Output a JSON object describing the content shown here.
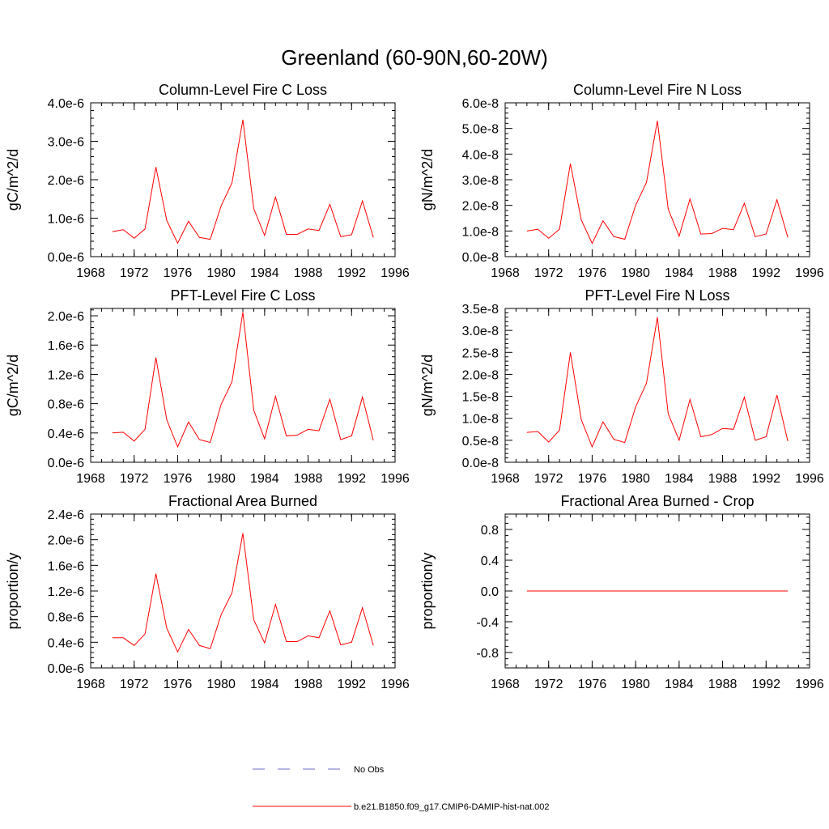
{
  "figure": {
    "title": "Greenland (60-90N,60-20W)"
  },
  "legend": {
    "entries": [
      {
        "label": "No Obs",
        "color": "#6b6bc8",
        "style": "dashed"
      },
      {
        "label": "b.e21.B1850.f09_g17.CMIP6-DAMIP-hist-nat.002",
        "color": "#ff0000",
        "style": "solid"
      }
    ]
  },
  "colors": {
    "series": "#ff0000",
    "axis": "#000000"
  },
  "chart_data": [
    {
      "type": "line",
      "title": "Column-Level Fire C Loss",
      "ylabel": "gC/m^2/d",
      "xlim": [
        1968,
        1996
      ],
      "ylim": [
        0,
        4e-06
      ],
      "xticks": [
        1968,
        1972,
        1976,
        1980,
        1984,
        1988,
        1992,
        1996
      ],
      "xtick_labels": [
        "1968",
        "1972",
        "1976",
        "1980",
        "1984",
        "1988",
        "1992",
        "1996"
      ],
      "yticks": [
        0,
        1e-06,
        2e-06,
        3e-06,
        4e-06
      ],
      "ytick_labels": [
        "0.0e-6",
        "1.0e-6",
        "2.0e-6",
        "3.0e-6",
        "4.0e-6"
      ],
      "grid": false,
      "x": [
        1970,
        1971,
        1972,
        1973,
        1974,
        1975,
        1976,
        1977,
        1978,
        1979,
        1980,
        1981,
        1982,
        1983,
        1984,
        1985,
        1986,
        1987,
        1988,
        1989,
        1990,
        1991,
        1992,
        1993,
        1994
      ],
      "series": [
        {
          "values": [
            6.5e-07,
            7e-07,
            4.8e-07,
            7.2e-07,
            2.33e-06,
            9.4e-07,
            3.5e-07,
            9.2e-07,
            5e-07,
            4.5e-07,
            1.32e-06,
            1.92e-06,
            3.56e-06,
            1.25e-06,
            5.5e-07,
            1.55e-06,
            5.8e-07,
            5.8e-07,
            7.2e-07,
            6.8e-07,
            1.36e-06,
            5.2e-07,
            5.7e-07,
            1.45e-06,
            5e-07
          ]
        }
      ]
    },
    {
      "type": "line",
      "title": "Column-Level Fire N Loss",
      "ylabel": "gN/m^2/d",
      "xlim": [
        1968,
        1996
      ],
      "ylim": [
        0,
        6e-08
      ],
      "xticks": [
        1968,
        1972,
        1976,
        1980,
        1984,
        1988,
        1992,
        1996
      ],
      "xtick_labels": [
        "1968",
        "1972",
        "1976",
        "1980",
        "1984",
        "1988",
        "1992",
        "1996"
      ],
      "yticks": [
        0,
        1e-08,
        2e-08,
        3e-08,
        4e-08,
        5e-08,
        6e-08
      ],
      "ytick_labels": [
        "0.0e-8",
        "1.0e-8",
        "2.0e-8",
        "3.0e-8",
        "4.0e-8",
        "5.0e-8",
        "6.0e-8"
      ],
      "grid": false,
      "x": [
        1970,
        1971,
        1972,
        1973,
        1974,
        1975,
        1976,
        1977,
        1978,
        1979,
        1980,
        1981,
        1982,
        1983,
        1984,
        1985,
        1986,
        1987,
        1988,
        1989,
        1990,
        1991,
        1992,
        1993,
        1994
      ],
      "series": [
        {
          "values": [
            1e-08,
            1.07e-08,
            7.2e-09,
            1.07e-08,
            3.63e-08,
            1.43e-08,
            5.2e-09,
            1.4e-08,
            7.8e-09,
            6.8e-09,
            2e-08,
            2.9e-08,
            5.3e-08,
            1.85e-08,
            8e-09,
            2.25e-08,
            8.8e-09,
            9e-09,
            1.1e-08,
            1.05e-08,
            2.08e-08,
            7.8e-09,
            8.8e-09,
            2.22e-08,
            7.5e-09
          ]
        }
      ]
    },
    {
      "type": "line",
      "title": "PFT-Level Fire C Loss",
      "ylabel": "gC/m^2/d",
      "xlim": [
        1968,
        1996
      ],
      "ylim": [
        0,
        2.1e-06
      ],
      "xticks": [
        1968,
        1972,
        1976,
        1980,
        1984,
        1988,
        1992,
        1996
      ],
      "xtick_labels": [
        "1968",
        "1972",
        "1976",
        "1980",
        "1984",
        "1988",
        "1992",
        "1996"
      ],
      "yticks": [
        0,
        4e-07,
        8e-07,
        1.2e-06,
        1.6e-06,
        2e-06
      ],
      "ytick_labels": [
        "0.0e-6",
        "0.4e-6",
        "0.8e-6",
        "1.2e-6",
        "1.6e-6",
        "2.0e-6"
      ],
      "grid": false,
      "x": [
        1970,
        1971,
        1972,
        1973,
        1974,
        1975,
        1976,
        1977,
        1978,
        1979,
        1980,
        1981,
        1982,
        1983,
        1984,
        1985,
        1986,
        1987,
        1988,
        1989,
        1990,
        1991,
        1992,
        1993,
        1994
      ],
      "series": [
        {
          "values": [
            4e-07,
            4.1e-07,
            2.9e-07,
            4.5e-07,
            1.43e-06,
            5.8e-07,
            2.1e-07,
            5.5e-07,
            3.1e-07,
            2.7e-07,
            7.9e-07,
            1.1e-06,
            2.05e-06,
            7.1e-07,
            3.2e-07,
            9e-07,
            3.6e-07,
            3.7e-07,
            4.5e-07,
            4.3e-07,
            8.6e-07,
            3.1e-07,
            3.6e-07,
            8.9e-07,
            3e-07
          ]
        }
      ]
    },
    {
      "type": "line",
      "title": "PFT-Level Fire N Loss",
      "ylabel": "gN/m^2/d",
      "xlim": [
        1968,
        1996
      ],
      "ylim": [
        0,
        3.5e-08
      ],
      "xticks": [
        1968,
        1972,
        1976,
        1980,
        1984,
        1988,
        1992,
        1996
      ],
      "xtick_labels": [
        "1968",
        "1972",
        "1976",
        "1980",
        "1984",
        "1988",
        "1992",
        "1996"
      ],
      "yticks": [
        0,
        5e-09,
        1e-08,
        1.5e-08,
        2e-08,
        2.5e-08,
        3e-08,
        3.5e-08
      ],
      "ytick_labels": [
        "0.0e-8",
        "0.5e-8",
        "1.0e-8",
        "1.5e-8",
        "2.0e-8",
        "2.5e-8",
        "3.0e-8",
        "3.5e-8"
      ],
      "grid": false,
      "x": [
        1970,
        1971,
        1972,
        1973,
        1974,
        1975,
        1976,
        1977,
        1978,
        1979,
        1980,
        1981,
        1982,
        1983,
        1984,
        1985,
        1986,
        1987,
        1988,
        1989,
        1990,
        1991,
        1992,
        1993,
        1994
      ],
      "series": [
        {
          "values": [
            6.8e-09,
            7e-09,
            4.6e-09,
            7.3e-09,
            2.5e-08,
            9.7e-09,
            3.5e-09,
            9.2e-09,
            5.2e-09,
            4.5e-09,
            1.26e-08,
            1.8e-08,
            3.3e-08,
            1.1e-08,
            5e-09,
            1.43e-08,
            5.8e-09,
            6.3e-09,
            7.7e-09,
            7.5e-09,
            1.48e-08,
            5e-09,
            5.8e-09,
            1.53e-08,
            4.8e-09
          ]
        }
      ]
    },
    {
      "type": "line",
      "title": "Fractional Area Burned",
      "ylabel": "proportion/y",
      "xlim": [
        1968,
        1996
      ],
      "ylim": [
        0,
        2.4e-06
      ],
      "xticks": [
        1968,
        1972,
        1976,
        1980,
        1984,
        1988,
        1992,
        1996
      ],
      "xtick_labels": [
        "1968",
        "1972",
        "1976",
        "1980",
        "1984",
        "1988",
        "1992",
        "1996"
      ],
      "yticks": [
        0,
        4e-07,
        8e-07,
        1.2e-06,
        1.6e-06,
        2e-06,
        2.4e-06
      ],
      "ytick_labels": [
        "0.0e-6",
        "0.4e-6",
        "0.8e-6",
        "1.2e-6",
        "1.6e-6",
        "2.0e-6",
        "2.4e-6"
      ],
      "grid": false,
      "x": [
        1970,
        1971,
        1972,
        1973,
        1974,
        1975,
        1976,
        1977,
        1978,
        1979,
        1980,
        1981,
        1982,
        1983,
        1984,
        1985,
        1986,
        1987,
        1988,
        1989,
        1990,
        1991,
        1992,
        1993,
        1994
      ],
      "series": [
        {
          "values": [
            4.7e-07,
            4.7e-07,
            3.5e-07,
            5.3e-07,
            1.47e-06,
            6.2e-07,
            2.5e-07,
            6e-07,
            3.5e-07,
            3e-07,
            8.3e-07,
            1.17e-06,
            2.1e-06,
            7.5e-07,
            3.9e-07,
            9.9e-07,
            4.1e-07,
            4.1e-07,
            5e-07,
            4.7e-07,
            8.9e-07,
            3.6e-07,
            4e-07,
            9.4e-07,
            3.5e-07
          ]
        }
      ]
    },
    {
      "type": "line",
      "title": "Fractional Area Burned - Crop",
      "ylabel": "proportion/y",
      "xlim": [
        1968,
        1996
      ],
      "ylim": [
        -1.0,
        1.0
      ],
      "xticks": [
        1968,
        1972,
        1976,
        1980,
        1984,
        1988,
        1992,
        1996
      ],
      "xtick_labels": [
        "1968",
        "1972",
        "1976",
        "1980",
        "1984",
        "1988",
        "1992",
        "1996"
      ],
      "yticks": [
        -0.8,
        -0.4,
        0.0,
        0.4,
        0.8
      ],
      "ytick_labels": [
        "-0.8",
        "-0.4",
        "0.0",
        "0.4",
        "0.8"
      ],
      "grid": false,
      "x": [
        1970,
        1971,
        1972,
        1973,
        1974,
        1975,
        1976,
        1977,
        1978,
        1979,
        1980,
        1981,
        1982,
        1983,
        1984,
        1985,
        1986,
        1987,
        1988,
        1989,
        1990,
        1991,
        1992,
        1993,
        1994
      ],
      "series": [
        {
          "values": [
            0,
            0,
            0,
            0,
            0,
            0,
            0,
            0,
            0,
            0,
            0,
            0,
            0,
            0,
            0,
            0,
            0,
            0,
            0,
            0,
            0,
            0,
            0,
            0,
            0
          ]
        }
      ]
    }
  ]
}
